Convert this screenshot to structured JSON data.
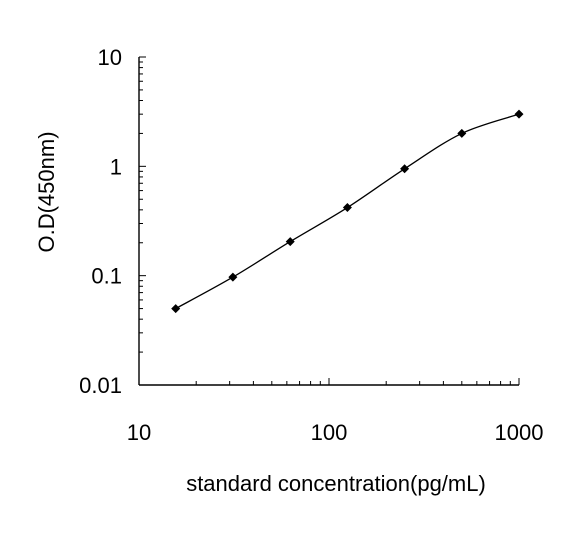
{
  "chart_data": {
    "type": "line",
    "title": "",
    "xlabel": "standard concentration(pg/mL)",
    "ylabel": "O.D(450nm)",
    "x_scale": "log",
    "y_scale": "log",
    "xlim": [
      10,
      1000
    ],
    "ylim": [
      0.01,
      10
    ],
    "x_ticks": [
      10,
      100,
      1000
    ],
    "x_tick_labels": [
      "10",
      "100",
      "1000"
    ],
    "y_ticks": [
      0.01,
      0.1,
      1,
      10
    ],
    "y_tick_labels": [
      "0.01",
      "0.1",
      "1",
      "10"
    ],
    "grid": false,
    "legend": "none",
    "series": [
      {
        "x": [
          15.6,
          31.2,
          62.5,
          125,
          250,
          500,
          1000
        ],
        "y": [
          0.05,
          0.097,
          0.205,
          0.42,
          0.95,
          2.0,
          3.0
        ],
        "marker": "diamond",
        "color": "#000000"
      }
    ]
  }
}
